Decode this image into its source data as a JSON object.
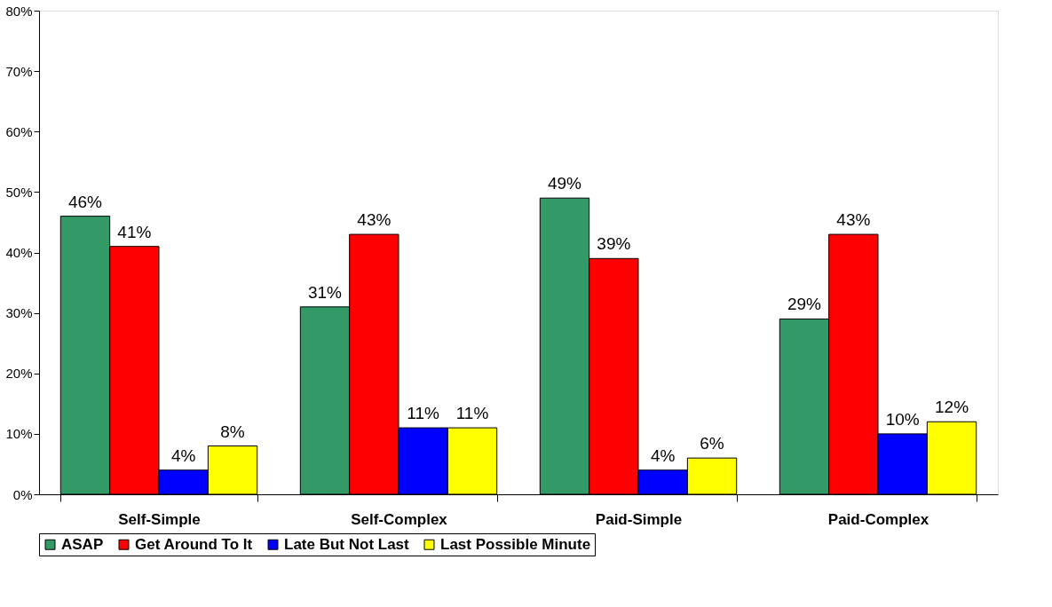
{
  "chart_data": {
    "type": "bar",
    "categories": [
      "Self-Simple",
      "Self-Complex",
      "Paid-Simple",
      "Paid-Complex"
    ],
    "series": [
      {
        "name": "ASAP",
        "color": "#339966",
        "values": [
          46,
          31,
          49,
          29
        ],
        "value_labels": [
          "46%",
          "31%",
          "49%",
          "29%"
        ]
      },
      {
        "name": "Get Around To It",
        "color": "#ff0000",
        "values": [
          41,
          43,
          39,
          43
        ],
        "value_labels": [
          "41%",
          "43%",
          "39%",
          "43%"
        ]
      },
      {
        "name": "Late But Not Last",
        "color": "#0000ff",
        "values": [
          4,
          11,
          4,
          10
        ],
        "value_labels": [
          "4%",
          "11%",
          "4%",
          "10%"
        ]
      },
      {
        "name": "Last Possible Minute",
        "color": "#ffff00",
        "values": [
          8,
          11,
          6,
          12
        ],
        "value_labels": [
          "8%",
          "11%",
          "6%",
          "12%"
        ]
      }
    ],
    "ylim": [
      0,
      80
    ],
    "yticks": [
      {
        "value": 0,
        "label": "0%"
      },
      {
        "value": 10,
        "label": "10%"
      },
      {
        "value": 20,
        "label": "20%"
      },
      {
        "value": 30,
        "label": "30%"
      },
      {
        "value": 40,
        "label": "40%"
      },
      {
        "value": 50,
        "label": "50%"
      },
      {
        "value": 60,
        "label": "60%"
      },
      {
        "value": 70,
        "label": "70%"
      },
      {
        "value": 80,
        "label": "80%"
      }
    ],
    "grid": false,
    "legend": "bottom"
  }
}
